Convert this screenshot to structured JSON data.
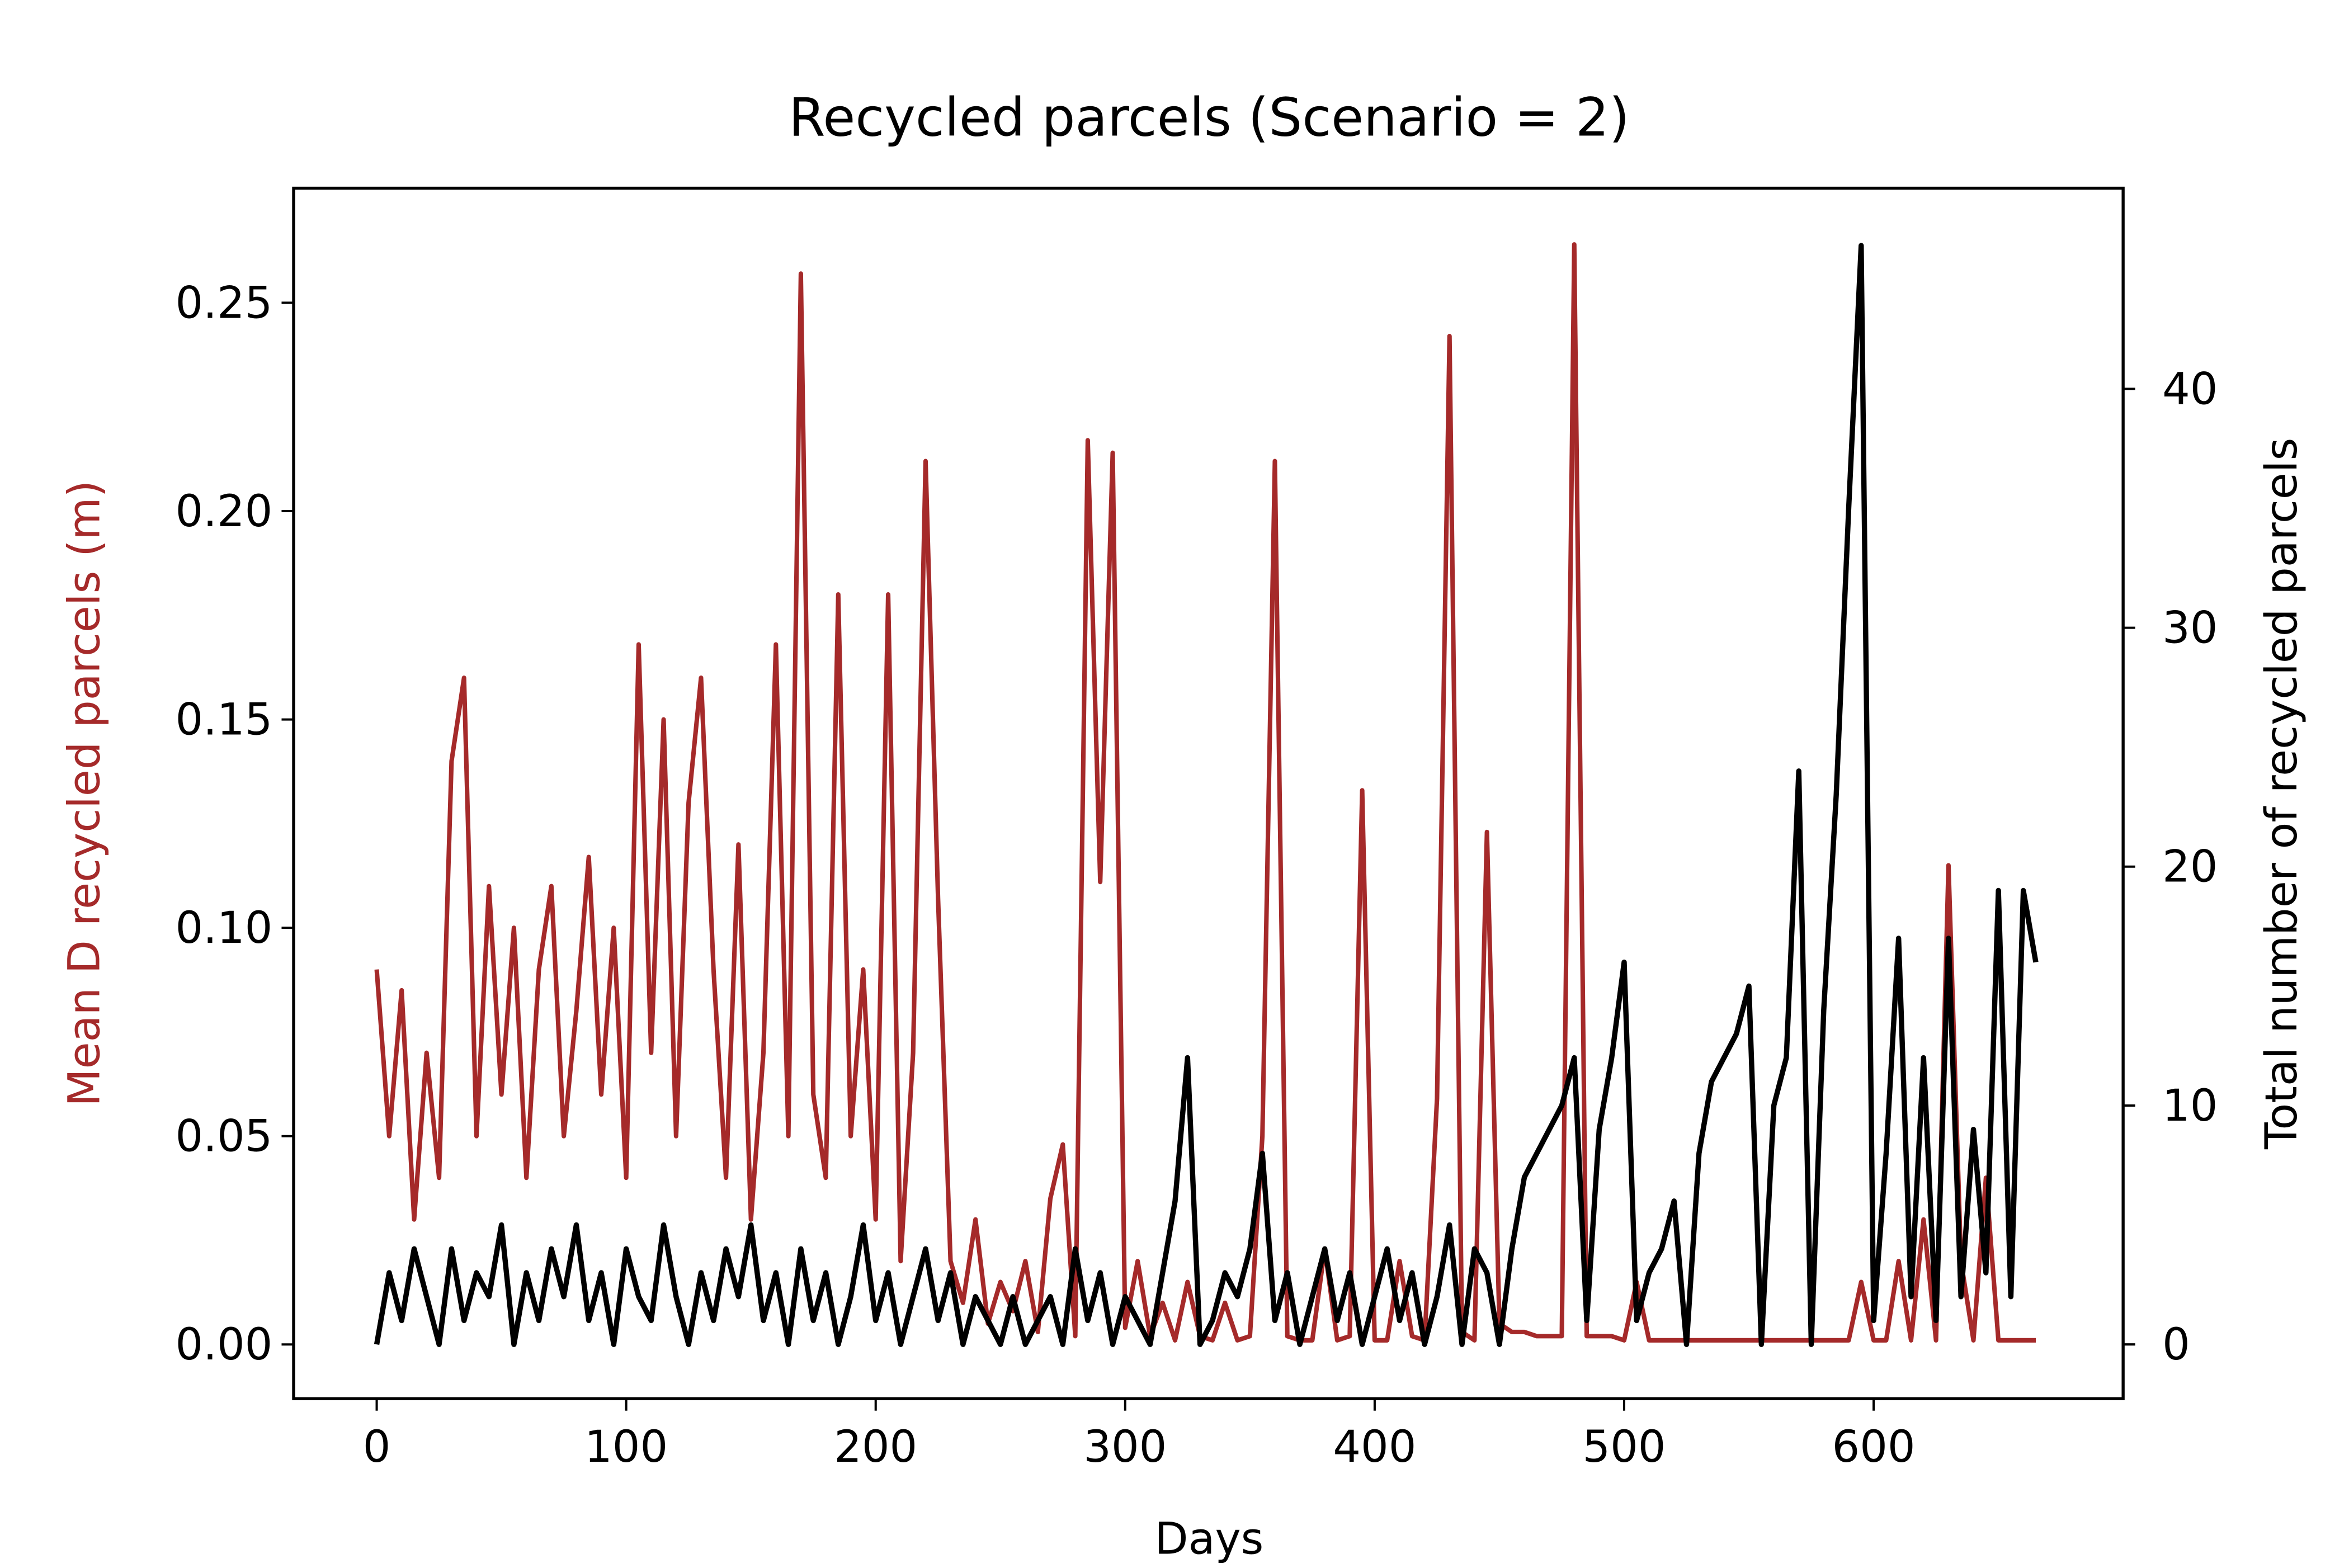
{
  "chart_data": {
    "type": "line",
    "title": "Recycled parcels (Scenario = 2)",
    "x_label": "Days",
    "y_label": "Mean D recycled parcels (m)",
    "y2_label": "Total number of recycled parcels",
    "y_label_color": "#a52a2a",
    "xlim": [
      -33.3,
      700
    ],
    "xticks": [
      0,
      100,
      200,
      300,
      400,
      500,
      600
    ],
    "ylim": [
      -0.013,
      0.2775
    ],
    "yticks": [
      {
        "value": 0,
        "label": "0.00"
      },
      {
        "value": 0.05,
        "label": "0.05"
      },
      {
        "value": 0.1,
        "label": "0.10"
      },
      {
        "value": 0.15,
        "label": "0.15"
      },
      {
        "value": 0.2,
        "label": "0.20"
      },
      {
        "value": 0.25,
        "label": "0.25"
      }
    ],
    "y2lim": [
      -2.27,
      48.4
    ],
    "y2ticks": [
      0,
      10,
      20,
      30,
      40
    ],
    "x": [
      0,
      5,
      10,
      15,
      20,
      25,
      30,
      35,
      40,
      45,
      50,
      55,
      60,
      65,
      70,
      75,
      80,
      85,
      90,
      95,
      100,
      105,
      110,
      115,
      120,
      125,
      130,
      135,
      140,
      145,
      150,
      155,
      160,
      165,
      170,
      175,
      180,
      185,
      190,
      195,
      200,
      205,
      210,
      215,
      220,
      225,
      230,
      235,
      240,
      245,
      250,
      255,
      260,
      265,
      270,
      275,
      280,
      285,
      290,
      295,
      300,
      305,
      310,
      315,
      320,
      325,
      330,
      335,
      340,
      345,
      350,
      355,
      360,
      365,
      370,
      375,
      380,
      385,
      390,
      395,
      400,
      405,
      410,
      415,
      420,
      425,
      430,
      435,
      440,
      445,
      450,
      455,
      460,
      465,
      470,
      475,
      480,
      485,
      490,
      495,
      500,
      505,
      510,
      515,
      520,
      525,
      530,
      535,
      540,
      545,
      550,
      555,
      560,
      565,
      570,
      575,
      580,
      585,
      590,
      595,
      600,
      605,
      610,
      615,
      620,
      625,
      630,
      635,
      640,
      645,
      650,
      655,
      660,
      665
    ],
    "series": [
      {
        "color": "#a52a2a",
        "axis": "y",
        "values": [
          0.09,
          0.05,
          0.085,
          0.03,
          0.07,
          0.04,
          0.14,
          0.16,
          0.05,
          0.11,
          0.06,
          0.1,
          0.04,
          0.09,
          0.11,
          0.05,
          0.08,
          0.117,
          0.06,
          0.1,
          0.04,
          0.168,
          0.07,
          0.15,
          0.05,
          0.13,
          0.16,
          0.09,
          0.04,
          0.12,
          0.03,
          0.07,
          0.168,
          0.05,
          0.257,
          0.06,
          0.04,
          0.18,
          0.05,
          0.09,
          0.03,
          0.18,
          0.02,
          0.07,
          0.212,
          0.107,
          0.02,
          0.01,
          0.03,
          0.005,
          0.015,
          0.008,
          0.02,
          0.003,
          0.035,
          0.048,
          0.002,
          0.217,
          0.111,
          0.214,
          0.004,
          0.02,
          0.002,
          0.01,
          0.001,
          0.015,
          0.002,
          0.001,
          0.01,
          0.001,
          0.002,
          0.05,
          0.212,
          0.002,
          0.001,
          0.001,
          0.023,
          0.001,
          0.002,
          0.133,
          0.001,
          0.001,
          0.02,
          0.002,
          0.001,
          0.059,
          0.242,
          0.003,
          0.001,
          0.123,
          0.005,
          0.003,
          0.003,
          0.002,
          0.002,
          0.002,
          0.264,
          0.002,
          0.002,
          0.002,
          0.001,
          0.015,
          0.001,
          0.001,
          0.001,
          0.001,
          0.001,
          0.001,
          0.001,
          0.001,
          0.001,
          0.001,
          0.001,
          0.001,
          0.001,
          0.001,
          0.001,
          0.001,
          0.001,
          0.015,
          0.001,
          0.001,
          0.02,
          0.001,
          0.03,
          0.001,
          0.115,
          0.02,
          0.001,
          0.04,
          0.001,
          0.001,
          0.001,
          0.001
        ]
      },
      {
        "color": "#000000",
        "axis": "y2",
        "values": [
          0,
          3,
          1,
          4,
          2,
          0,
          4,
          1,
          3,
          2,
          5,
          0,
          3,
          1,
          4,
          2,
          5,
          1,
          3,
          0,
          4,
          2,
          1,
          5,
          2,
          0,
          3,
          1,
          4,
          2,
          5,
          1,
          3,
          0,
          4,
          1,
          3,
          0,
          2,
          5,
          1,
          3,
          0,
          2,
          4,
          1,
          3,
          0,
          2,
          1,
          0,
          2,
          0,
          1,
          2,
          0,
          4,
          1,
          3,
          0,
          2,
          1,
          0,
          3,
          6,
          12,
          0,
          1,
          3,
          2,
          4,
          8,
          1,
          3,
          0,
          2,
          4,
          1,
          3,
          0,
          2,
          4,
          1,
          3,
          0,
          2,
          5,
          0,
          4,
          3,
          0,
          4,
          7,
          8,
          9,
          10,
          12,
          1,
          9,
          12,
          16,
          1,
          3,
          4,
          6,
          0,
          8,
          11,
          12,
          13,
          15,
          0,
          10,
          12,
          24,
          0,
          14,
          23,
          35,
          46,
          1,
          8,
          17,
          2,
          12,
          1,
          17,
          2,
          9,
          3,
          19,
          2,
          19,
          16
        ]
      }
    ]
  }
}
